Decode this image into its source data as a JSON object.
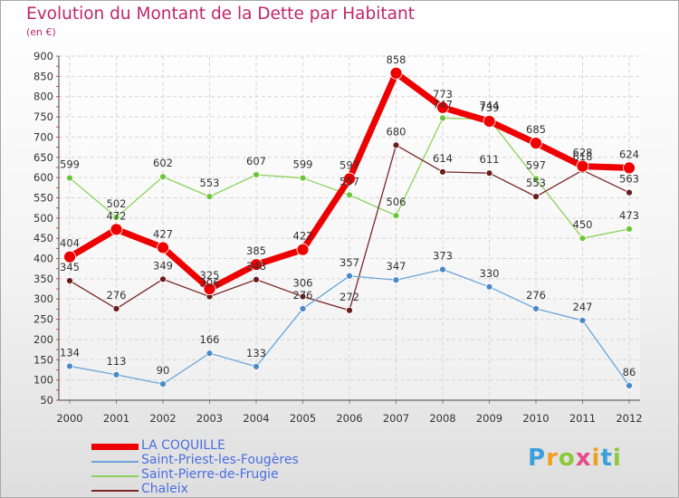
{
  "title": "Evolution du Montant de la Dette par Habitant",
  "unit": "(en €)",
  "logo": {
    "letters": [
      "P",
      "r",
      "o",
      "x",
      "i",
      "t",
      "i"
    ],
    "colors": [
      "#3aa0dc",
      "#f0a020",
      "#8cc83c",
      "#e84a8a",
      "#f0a020",
      "#3aa0dc",
      "#8cc83c"
    ]
  },
  "chart_data": {
    "type": "line",
    "x": [
      "2000",
      "2001",
      "2002",
      "2003",
      "2004",
      "2005",
      "2006",
      "2007",
      "2008",
      "2009",
      "2010",
      "2011",
      "2012"
    ],
    "ylim": [
      50,
      900
    ],
    "yticks": [
      50,
      100,
      150,
      200,
      250,
      300,
      350,
      400,
      450,
      500,
      550,
      600,
      650,
      700,
      750,
      800,
      850,
      900
    ],
    "grid": true,
    "legend_position": "bottom-left",
    "series": [
      {
        "name": "Saint-Pierre-de-Frugie",
        "color": "#8cd25a",
        "marker": "#6cc63c",
        "width": 1.3,
        "r": 3.5,
        "values": [
          599,
          502,
          602,
          553,
          607,
          599,
          557,
          506,
          747,
          744,
          597,
          450,
          473
        ]
      },
      {
        "name": "Chaleix",
        "color": "#7a2626",
        "marker": "#6a1c1c",
        "width": 1.3,
        "r": 3.5,
        "values": [
          345,
          276,
          349,
          306,
          348,
          306,
          272,
          680,
          614,
          611,
          553,
          618,
          563
        ]
      },
      {
        "name": "Saint-Priest-les-Fougères",
        "color": "#6aa4d8",
        "marker": "#4a88c8",
        "width": 1.3,
        "r": 3.5,
        "values": [
          134,
          113,
          90,
          166,
          133,
          276,
          357,
          347,
          373,
          330,
          276,
          247,
          86
        ]
      },
      {
        "name": "LA COQUILLE",
        "color": "#ee0000",
        "marker": "#ee0000",
        "width": 7,
        "r": 6.5,
        "values": [
          404,
          472,
          427,
          325,
          385,
          422,
          597,
          858,
          773,
          739,
          685,
          628,
          624
        ]
      }
    ],
    "data_labels": [
      [
        "599",
        "502",
        "602",
        "553",
        "607",
        "599",
        "557",
        "506",
        "747",
        "744",
        "597",
        "450",
        "473"
      ],
      [
        "345",
        "276",
        "349",
        "306",
        "348",
        "306",
        "272",
        "680",
        "614",
        "611",
        "553",
        "618",
        "563"
      ],
      [
        "134",
        "113",
        "90",
        "166",
        "133",
        "276",
        "357",
        "347",
        "373",
        "330",
        "276",
        "247",
        "86"
      ],
      [
        "404",
        "472",
        "427",
        "325",
        "385",
        "422",
        "597",
        "858",
        "773",
        "739",
        "685",
        "628",
        "624"
      ]
    ],
    "legend_order": [
      3,
      2,
      0,
      1
    ]
  }
}
